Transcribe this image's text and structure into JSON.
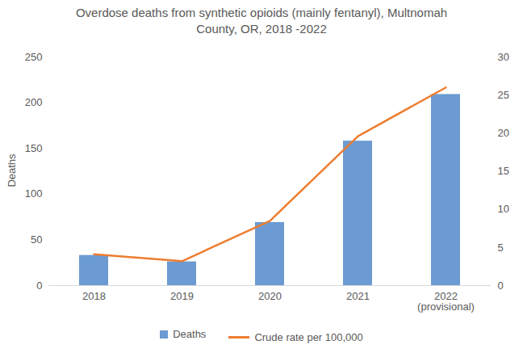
{
  "chart_data": {
    "type": "bar",
    "title": "Overdose deaths from synthetic opioids (mainly fentanyl), Multnomah County, OR, 2018 -2022",
    "categories": [
      "2018",
      "2019",
      "2020",
      "2021",
      "2022 (provisional)"
    ],
    "series": [
      {
        "name": "Deaths",
        "type": "bar",
        "color": "#6b9bd2",
        "values": [
          33,
          26,
          69,
          158,
          209
        ]
      },
      {
        "name": "Crude rate per 100,000",
        "type": "line",
        "color": "#ed7d31",
        "axis": "y2",
        "values": [
          4.1,
          3.2,
          8.5,
          19.6,
          26.0
        ]
      }
    ],
    "ylabel": "Deaths",
    "ylim": [
      0,
      250
    ],
    "yticks": [
      0,
      50,
      100,
      150,
      200,
      250
    ],
    "y2lim": [
      0,
      30
    ],
    "y2ticks": [
      0,
      5,
      10,
      15,
      20,
      25,
      30
    ],
    "grid": false,
    "legend": "bottom"
  }
}
